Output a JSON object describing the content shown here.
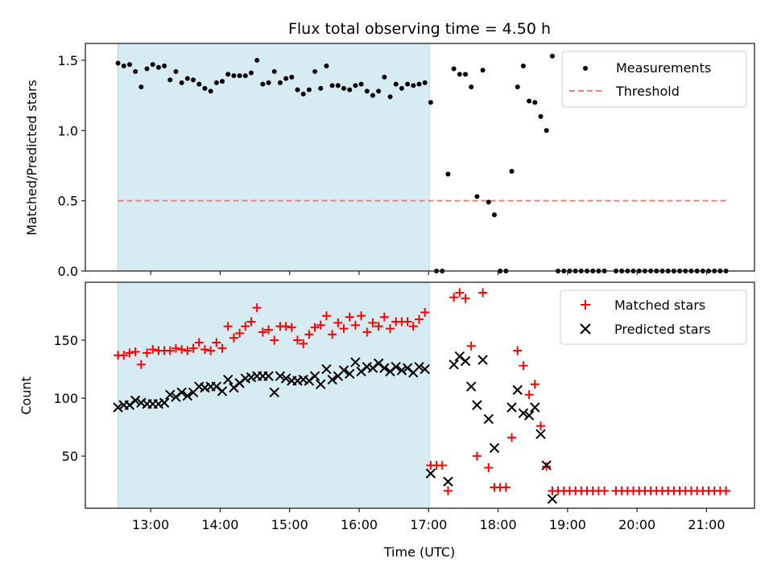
{
  "chart_data": [
    {
      "type": "scatter",
      "title": "Flux total observing time = 4.50 h",
      "xlabel": "",
      "ylabel": "Matched/Predicted stars",
      "xlim": [
        12.06,
        21.69
      ],
      "ylim": [
        0,
        1.62
      ],
      "yticks": [
        0.0,
        0.5,
        1.0,
        1.5
      ],
      "ytick_labels": [
        "0.0",
        "0.5",
        "1.0",
        "1.5"
      ],
      "shaded_span": {
        "x_start": 12.53,
        "x_end": 17.01,
        "color": "#add8e6"
      },
      "legend": {
        "placement": "top-right",
        "entries": [
          "Measurements",
          "Threshold"
        ]
      },
      "series": [
        {
          "name": "Measurements",
          "marker": "dot",
          "color": "#000000",
          "x_start": 12.53,
          "x_step_minutes": 5,
          "values": [
            1.48,
            1.46,
            1.47,
            1.42,
            1.31,
            1.44,
            1.47,
            1.45,
            1.46,
            1.36,
            1.42,
            1.34,
            1.37,
            1.36,
            1.33,
            1.3,
            1.28,
            1.34,
            1.35,
            1.4,
            1.39,
            1.39,
            1.39,
            1.41,
            1.5,
            1.33,
            1.34,
            1.42,
            1.34,
            1.37,
            1.38,
            1.29,
            1.26,
            1.29,
            1.42,
            1.3,
            1.46,
            1.32,
            1.32,
            1.3,
            1.29,
            1.32,
            1.33,
            1.28,
            1.25,
            1.28,
            1.38,
            1.24,
            1.33,
            1.3,
            1.33,
            1.32,
            1.33,
            1.34,
            1.2,
            0,
            0,
            0.69,
            1.44,
            1.4,
            1.4,
            1.31,
            0.53,
            1.43,
            0.49,
            0.4,
            0,
            0,
            0.71,
            1.31,
            1.46,
            1.21,
            1.2,
            1.1,
            1.0,
            1.53,
            0,
            0,
            0,
            0,
            0,
            0,
            0,
            0,
            0,
            null,
            0,
            0,
            0,
            0,
            0,
            0,
            0,
            0,
            0,
            0,
            0,
            0,
            0,
            0,
            0,
            0,
            0,
            0,
            0,
            0
          ]
        },
        {
          "name": "Threshold",
          "type": "line",
          "style": "dashed",
          "color": "#f08080",
          "y": 0.5,
          "x_range": [
            12.53,
            21.3
          ]
        }
      ]
    },
    {
      "type": "scatter",
      "title": "",
      "xlabel": "Time (UTC)",
      "ylabel": "Count",
      "xlim": [
        12.06,
        21.69
      ],
      "ylim": [
        5,
        200
      ],
      "yticks": [
        50,
        100,
        150
      ],
      "ytick_labels": [
        "50",
        "100",
        "150"
      ],
      "xticks": [
        13,
        14,
        15,
        16,
        17,
        18,
        19,
        20,
        21
      ],
      "xtick_labels": [
        "13:00",
        "14:00",
        "15:00",
        "16:00",
        "17:00",
        "18:00",
        "19:00",
        "20:00",
        "21:00"
      ],
      "shaded_span": {
        "x_start": 12.53,
        "x_end": 17.01,
        "color": "#add8e6"
      },
      "legend": {
        "placement": "top-right",
        "entries": [
          "Matched stars",
          "Predicted stars"
        ]
      },
      "series": [
        {
          "name": "Matched stars",
          "marker": "plus",
          "color": "#ff0000",
          "x_start": 12.53,
          "x_step_minutes": 5,
          "values": [
            137,
            137,
            139,
            140,
            129,
            139,
            142,
            141,
            141,
            141,
            143,
            142,
            141,
            143,
            148,
            142,
            141,
            148,
            143,
            162,
            152,
            156,
            162,
            166,
            178,
            157,
            159,
            150,
            162,
            162,
            161,
            150,
            147,
            155,
            161,
            163,
            171,
            155,
            165,
            160,
            170,
            163,
            171,
            157,
            165,
            162,
            170,
            160,
            166,
            166,
            166,
            162,
            168,
            174,
            42,
            42,
            42,
            20,
            187,
            191,
            186,
            145,
            50,
            191,
            40,
            23,
            23,
            23,
            66,
            141,
            128,
            103,
            112,
            76,
            41,
            20,
            20,
            20,
            20,
            20,
            20,
            20,
            20,
            20,
            20,
            null,
            20,
            20,
            20,
            20,
            20,
            20,
            20,
            20,
            20,
            20,
            20,
            20,
            20,
            20,
            20,
            20,
            20,
            20,
            20,
            20
          ]
        },
        {
          "name": "Predicted stars",
          "marker": "x",
          "color": "#000000",
          "x_start": 12.53,
          "x_step_minutes": 5,
          "values": [
            92,
            94,
            94,
            98,
            96,
            95,
            95,
            95,
            96,
            103,
            101,
            105,
            102,
            105,
            110,
            109,
            110,
            110,
            106,
            116,
            109,
            113,
            117,
            118,
            119,
            119,
            119,
            105,
            119,
            117,
            115,
            115,
            116,
            115,
            119,
            112,
            125,
            116,
            119,
            124,
            121,
            131,
            123,
            127,
            126,
            130,
            126,
            123,
            127,
            124,
            126,
            122,
            127,
            125,
            35,
            0,
            0,
            28,
            129,
            136,
            132,
            110,
            94,
            133,
            82,
            57,
            0,
            0,
            92,
            107,
            87,
            85,
            92,
            69,
            42,
            13,
            0,
            0,
            0,
            0,
            0,
            0,
            0,
            0,
            0,
            null,
            0,
            0,
            0,
            0,
            0,
            0,
            0,
            0,
            0,
            0,
            0,
            0,
            0,
            0,
            0,
            0,
            0,
            0,
            0,
            0
          ]
        }
      ]
    }
  ]
}
